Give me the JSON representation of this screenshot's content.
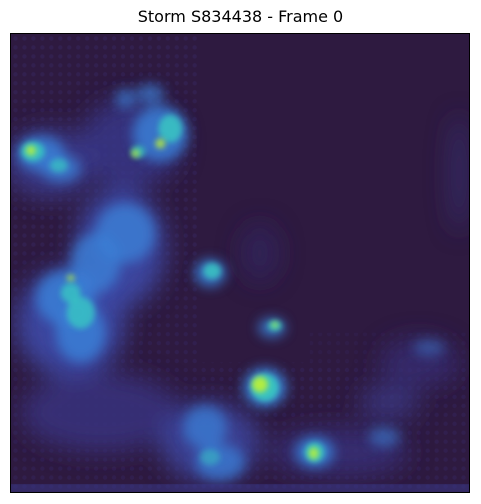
{
  "figure": {
    "title": "Storm S834438 - Frame 0",
    "colors": {
      "background": "#2e1a40",
      "low": "#3a3a8c",
      "mid": "#3b7fd6",
      "high": "#38c7c2",
      "peak": "#b8ef3a"
    }
  }
}
